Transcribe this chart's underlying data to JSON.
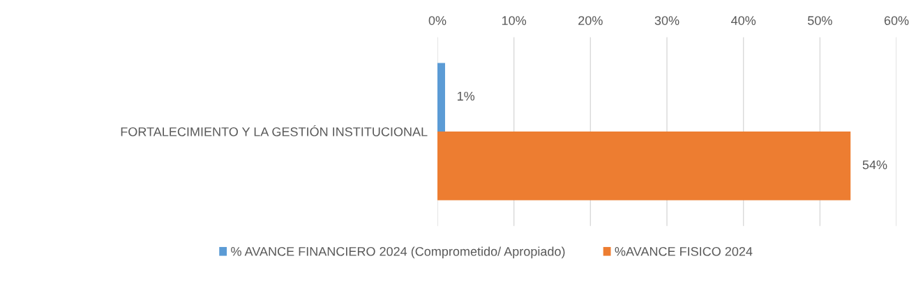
{
  "chart_data": {
    "type": "bar",
    "orientation": "horizontal",
    "categories": [
      "FORTALECIMIENTO Y LA GESTIÓN INSTITUCIONAL"
    ],
    "series": [
      {
        "name": "% AVANCE FINANCIERO 2024 (Comprometido/ Apropiado)",
        "color": "#5b9bd5",
        "values": [
          1
        ],
        "value_labels": [
          "1%"
        ]
      },
      {
        "name": "%AVANCE FISICO 2024",
        "color": "#ed7d31",
        "values": [
          54
        ],
        "value_labels": [
          "54%"
        ]
      }
    ],
    "xlim": [
      0,
      60
    ],
    "xticks": [
      {
        "value": 0,
        "label": "0%"
      },
      {
        "value": 10,
        "label": "10%"
      },
      {
        "value": 20,
        "label": "20%"
      },
      {
        "value": 30,
        "label": "30%"
      },
      {
        "value": 40,
        "label": "40%"
      },
      {
        "value": 50,
        "label": "50%"
      },
      {
        "value": 60,
        "label": "60%"
      }
    ],
    "grid": "x",
    "legend": "bottom"
  }
}
